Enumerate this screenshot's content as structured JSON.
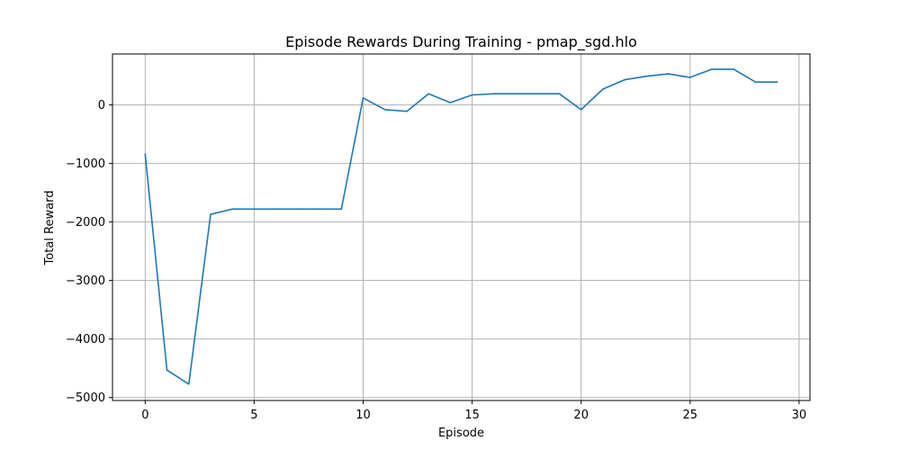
{
  "chart_data": {
    "type": "line",
    "title": "Episode Rewards During Training - pmap_sgd.hlo",
    "xlabel": "Episode",
    "ylabel": "Total Reward",
    "xlim": [
      -1.5,
      30.5
    ],
    "ylim": [
      -5050,
      870
    ],
    "x_ticks": [
      0,
      5,
      10,
      15,
      20,
      25,
      30
    ],
    "x_tick_labels": [
      "0",
      "5",
      "10",
      "15",
      "20",
      "25",
      "30"
    ],
    "y_ticks": [
      0,
      -1000,
      -2000,
      -3000,
      -4000,
      -5000
    ],
    "y_tick_labels": [
      "0",
      "−1000",
      "−2000",
      "−3000",
      "−4000",
      "−5000"
    ],
    "grid": true,
    "series": [
      {
        "color": "#1f77b4",
        "x": [
          0,
          1,
          2,
          3,
          4,
          5,
          6,
          7,
          8,
          9,
          10,
          11,
          12,
          13,
          14,
          15,
          16,
          17,
          18,
          19,
          20,
          21,
          22,
          23,
          24,
          25,
          26,
          27,
          28,
          29
        ],
        "y": [
          -840,
          -4530,
          -4770,
          -1870,
          -1780,
          -1780,
          -1780,
          -1780,
          -1780,
          -1780,
          120,
          -80,
          -110,
          190,
          40,
          170,
          190,
          190,
          190,
          190,
          -80,
          270,
          430,
          490,
          530,
          470,
          610,
          610,
          390,
          390
        ]
      }
    ]
  }
}
